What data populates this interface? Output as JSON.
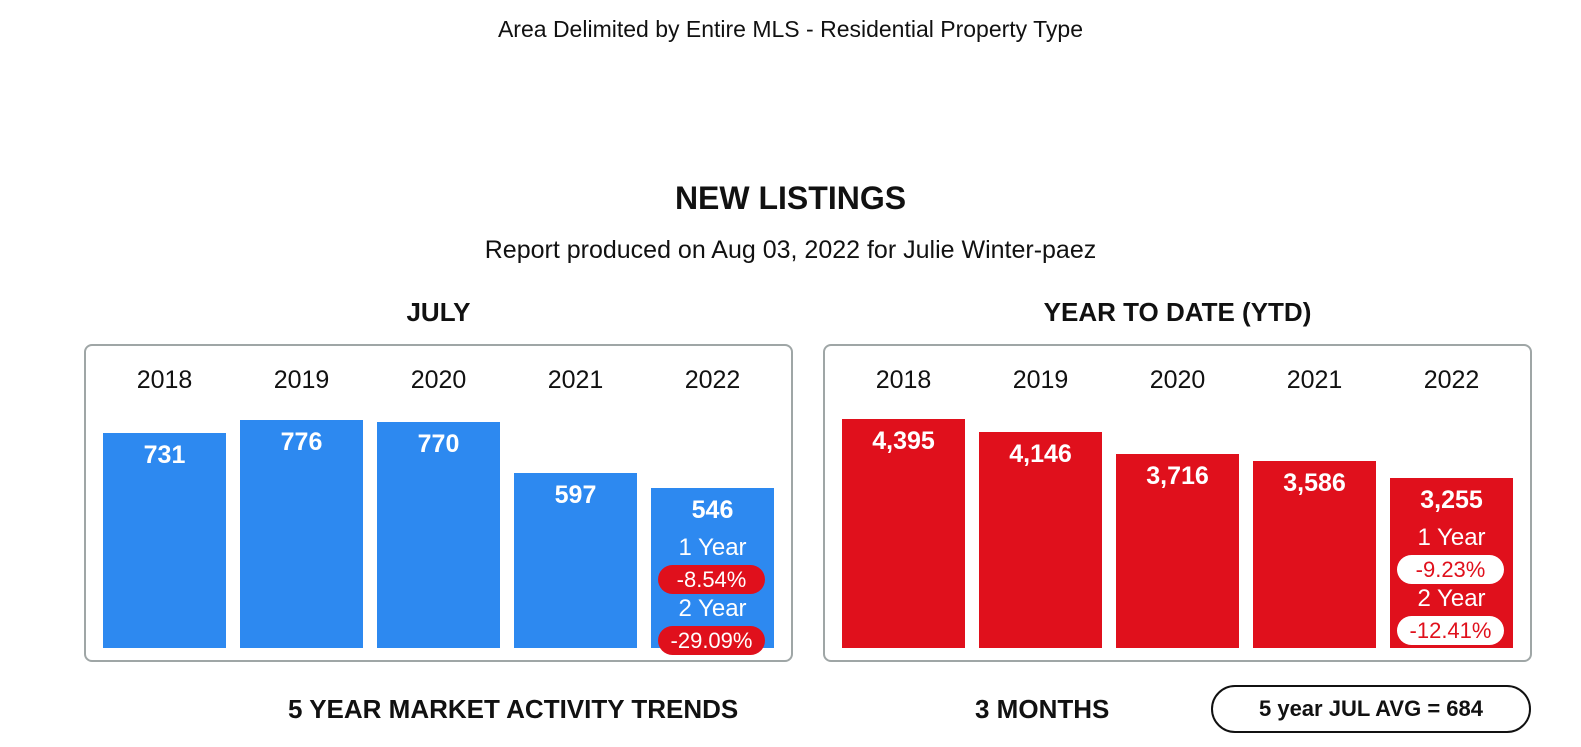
{
  "header": {
    "area_text": "Area Delimited by Entire MLS - Residential Property Type",
    "title": "NEW LISTINGS",
    "report_line": "Report produced on Aug 03, 2022 for Julie Winter-paez"
  },
  "colors": {
    "month_bars": "#2d89f0",
    "ytd_bars": "#e0101c",
    "panel_border": "#9fa6a6"
  },
  "chart_data": [
    {
      "type": "bar",
      "title": "JULY",
      "categories": [
        "2018",
        "2019",
        "2020",
        "2021",
        "2022"
      ],
      "values": [
        731,
        776,
        770,
        597,
        546
      ],
      "value_labels": [
        "731",
        "776",
        "770",
        "597",
        "546"
      ],
      "changes": {
        "one_year_label": "1 Year",
        "one_year_value": "-8.54%",
        "two_year_label": "2 Year",
        "two_year_value": "-29.09%"
      }
    },
    {
      "type": "bar",
      "title": "YEAR TO DATE (YTD)",
      "categories": [
        "2018",
        "2019",
        "2020",
        "2021",
        "2022"
      ],
      "values": [
        4395,
        4146,
        3716,
        3586,
        3255
      ],
      "value_labels": [
        "4,395",
        "4,146",
        "3,716",
        "3,586",
        "3,255"
      ],
      "changes": {
        "one_year_label": "1 Year",
        "one_year_value": "-9.23%",
        "two_year_label": "2 Year",
        "two_year_value": "-12.41%"
      }
    }
  ],
  "footer": {
    "trends_label": "5 YEAR MARKET ACTIVITY TRENDS",
    "months_label": "3 MONTHS",
    "avg_label": "5 year JUL AVG = 684"
  }
}
